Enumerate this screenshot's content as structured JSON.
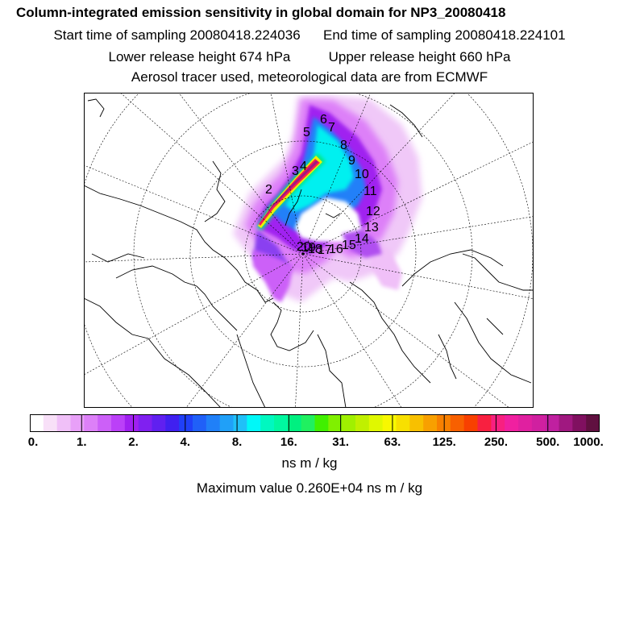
{
  "header": {
    "title": "Column-integrated emission sensitivity in global domain for NP3_20080418",
    "start_label": "Start time of sampling 20080418.224036",
    "end_label": "End time of sampling 20080418.224101",
    "lower_label": "Lower release height  674 hPa",
    "upper_label": "Upper release height  660 hPa",
    "tracer_line": "Aerosol tracer used, meteorological data are from ECMWF"
  },
  "colors": {
    "scale": [
      "#ffffff",
      "#f8e0f8",
      "#f0c0f8",
      "#e8a0f8",
      "#dd80f8",
      "#cc60f8",
      "#bb40f8",
      "#a020f0",
      "#8020f0",
      "#6020f0",
      "#4020f0",
      "#2040f8",
      "#2060f8",
      "#2080f8",
      "#20a0f8",
      "#20c0f8",
      "#00f8f8",
      "#00f8c0",
      "#00f8a0",
      "#00f080",
      "#20f060",
      "#40f000",
      "#80f000",
      "#a0f000",
      "#c0f000",
      "#e0f800",
      "#f8f800",
      "#f8e000",
      "#f8c000",
      "#f8a000",
      "#f88000",
      "#f86000",
      "#f84000",
      "#f82040",
      "#f82080",
      "#f020a0",
      "#e020a0",
      "#d020a0",
      "#c020a0",
      "#a01880",
      "#801060",
      "#601040"
    ],
    "map_bg": "#ffffff",
    "coast": "#000000"
  },
  "map": {
    "point_labels": [
      "2",
      "3",
      "4",
      "5",
      "6",
      "7",
      "8",
      "9",
      "10",
      "11",
      "12",
      "13",
      "14",
      "15",
      "16",
      "17",
      "18",
      "19",
      "20"
    ]
  },
  "colorbar": {
    "ticks": [
      "0.",
      "1.",
      "2.",
      "4.",
      "8.",
      "16.",
      "31.",
      "63.",
      "125.",
      "250.",
      "500.",
      "1000."
    ]
  },
  "units": "ns m / kg",
  "max_value": "Maximum value  0.260E+04 ns m / kg"
}
